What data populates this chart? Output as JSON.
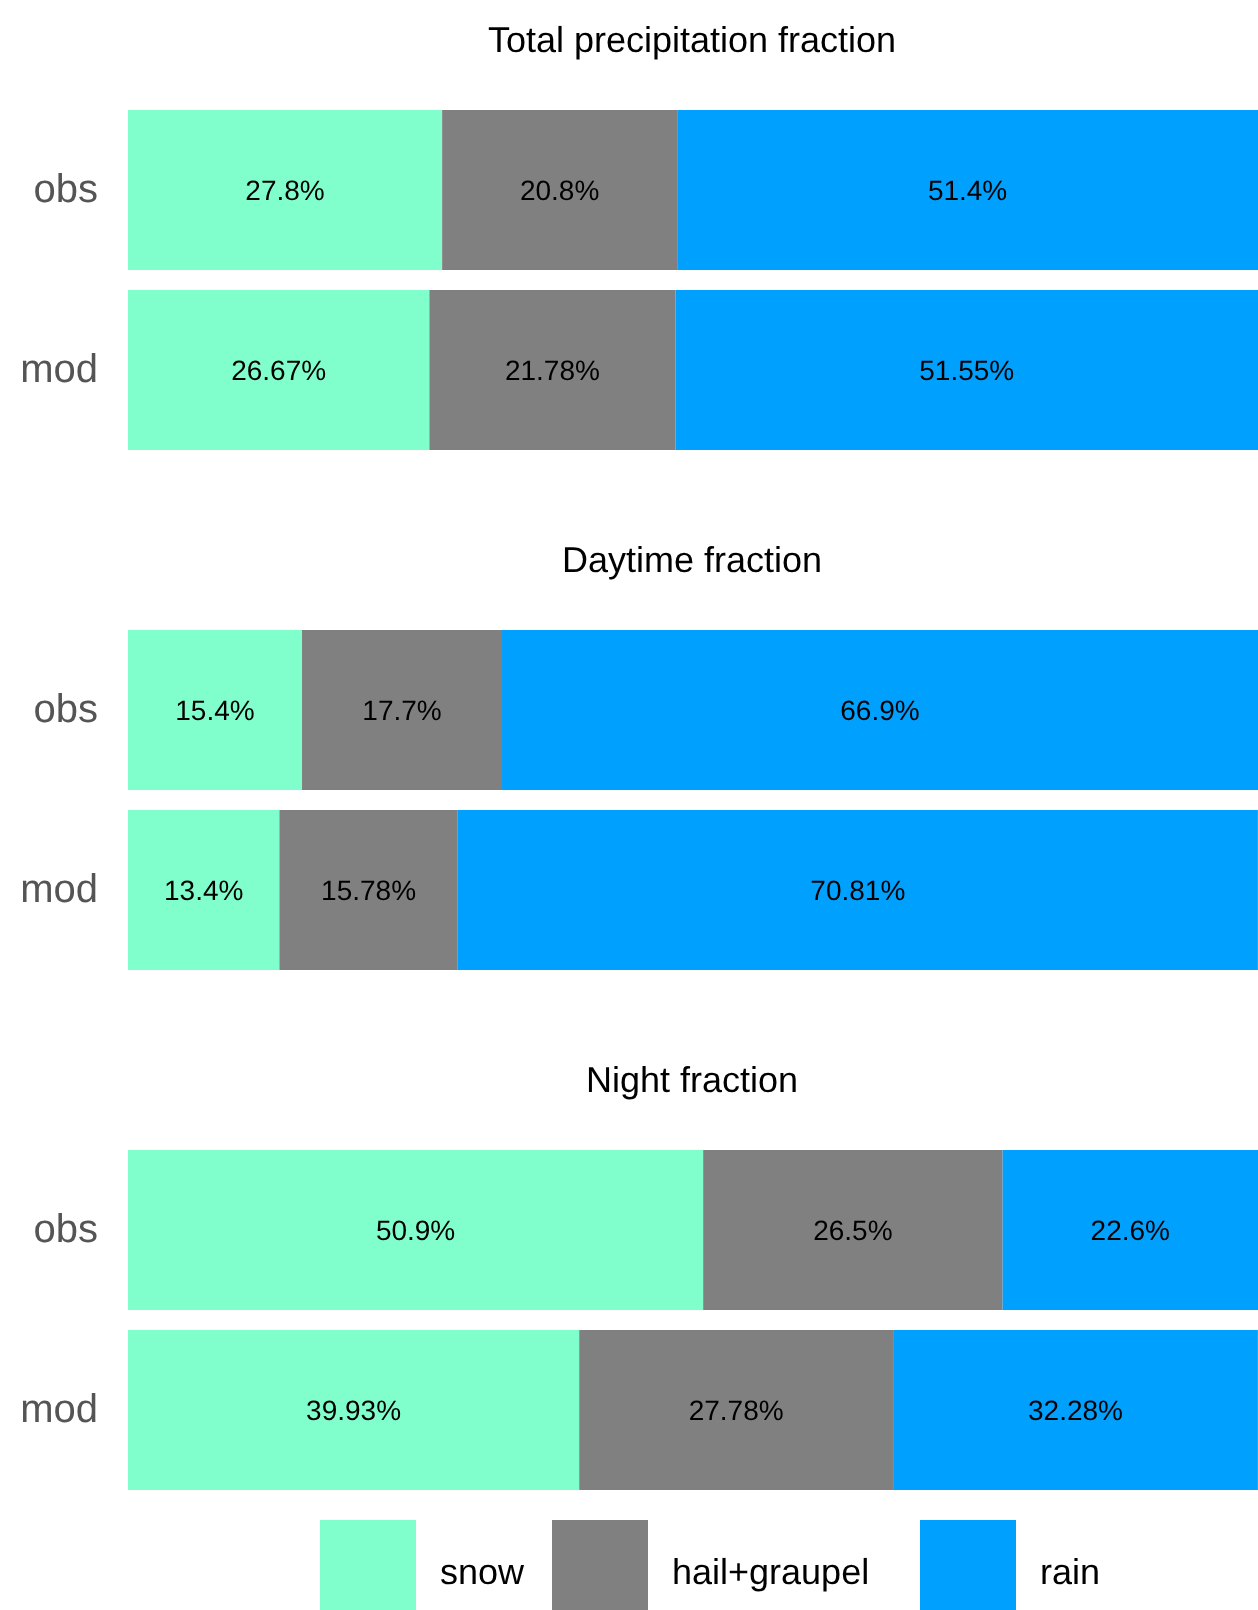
{
  "chart_data": [
    {
      "type": "bar",
      "title": "Total precipitation fraction",
      "orientation": "horizontal",
      "stacked": true,
      "categories": [
        "obs",
        "mod"
      ],
      "xlim": [
        0,
        100
      ],
      "tick_labels": "y",
      "legend": false,
      "series": [
        {
          "color": "#80ffcc",
          "values": [
            27.8,
            26.67
          ],
          "value_labels": [
            "27.8%",
            "26.67%"
          ]
        },
        {
          "color": "#808080",
          "values": [
            20.8,
            21.78
          ],
          "value_labels": [
            "20.8%",
            "21.78%"
          ]
        },
        {
          "color": "#00a0ff",
          "values": [
            51.4,
            51.55
          ],
          "value_labels": [
            "51.4%",
            "51.55%"
          ]
        }
      ]
    },
    {
      "type": "bar",
      "title": "Daytime fraction",
      "orientation": "horizontal",
      "stacked": true,
      "categories": [
        "obs",
        "mod"
      ],
      "xlim": [
        0,
        100
      ],
      "tick_labels": "y",
      "legend": false,
      "series": [
        {
          "color": "#80ffcc",
          "values": [
            15.4,
            13.4
          ],
          "value_labels": [
            "15.4%",
            "13.4%"
          ]
        },
        {
          "color": "#808080",
          "values": [
            17.7,
            15.78
          ],
          "value_labels": [
            "17.7%",
            "15.78%"
          ]
        },
        {
          "color": "#00a0ff",
          "values": [
            66.9,
            70.81
          ],
          "value_labels": [
            "66.9%",
            "70.81%"
          ]
        }
      ]
    },
    {
      "type": "bar",
      "title": "Night fraction",
      "orientation": "horizontal",
      "stacked": true,
      "categories": [
        "obs",
        "mod"
      ],
      "xlim": [
        0,
        100
      ],
      "tick_labels": "y",
      "legend": "bottom",
      "series": [
        {
          "name": "snow",
          "color": "#80ffcc",
          "values": [
            50.9,
            39.93
          ],
          "value_labels": [
            "50.9%",
            "39.93%"
          ]
        },
        {
          "name": "hail+graupel",
          "color": "#808080",
          "values": [
            26.5,
            27.78
          ],
          "value_labels": [
            "26.5%",
            "27.78%"
          ]
        },
        {
          "name": "rain",
          "color": "#00a0ff",
          "values": [
            22.6,
            32.28
          ],
          "value_labels": [
            "22.6%",
            "32.28%"
          ]
        }
      ]
    }
  ]
}
